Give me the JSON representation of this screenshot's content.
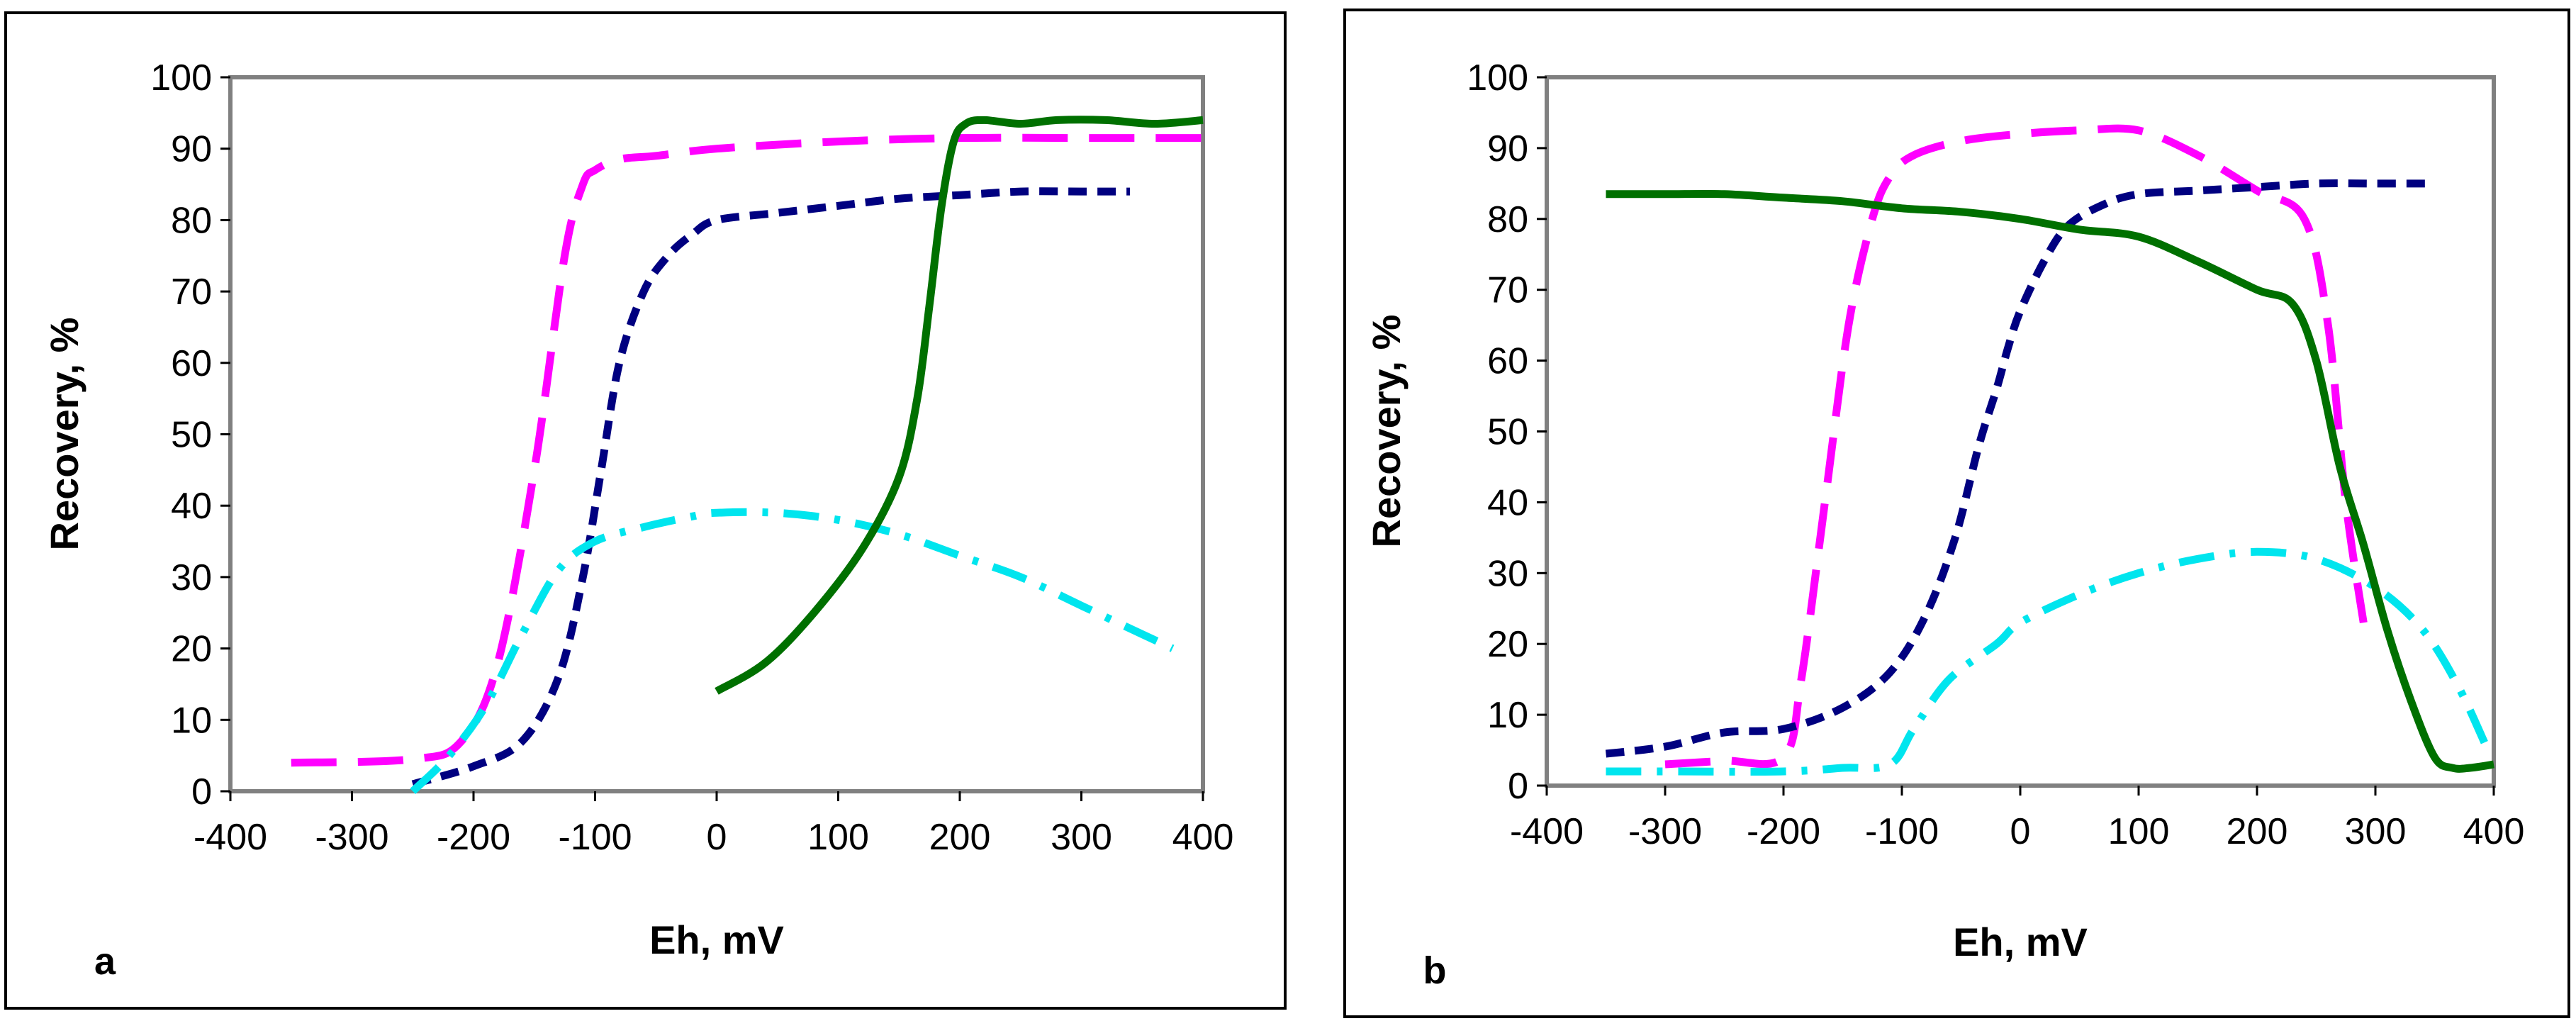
{
  "chart_data": [
    {
      "type": "line",
      "panel_label": "a",
      "xlabel": "Eh, mV",
      "ylabel": "Recovery, %",
      "xlim": [
        -400,
        400
      ],
      "ylim": [
        0,
        100
      ],
      "xticks": [
        -400,
        -300,
        -200,
        -100,
        0,
        100,
        200,
        300,
        400
      ],
      "yticks": [
        0,
        10,
        20,
        30,
        40,
        50,
        60,
        70,
        80,
        90,
        100
      ],
      "xtick_labels": [
        "-400",
        "-300",
        "-200",
        "-100",
        "0",
        "100",
        "200",
        "300",
        "400"
      ],
      "ytick_labels": [
        "0",
        "10",
        "20",
        "30",
        "40",
        "50",
        "60",
        "70",
        "80",
        "90",
        "100"
      ],
      "series": [
        {
          "name": "magenta-long-dash",
          "color": "#ff00ff",
          "style": "long-dash",
          "x": [
            -350,
            -250,
            -210,
            -180,
            -150,
            -125,
            -110,
            -100,
            -80,
            -50,
            0,
            100,
            200,
            300,
            400
          ],
          "y": [
            4,
            4.5,
            7,
            18,
            45,
            75,
            85,
            87,
            88.5,
            89,
            90,
            91,
            91.5,
            91.5,
            91.5
          ]
        },
        {
          "name": "navy-short-dash",
          "color": "#000080",
          "style": "short-dash",
          "x": [
            -250,
            -200,
            -160,
            -130,
            -110,
            -95,
            -80,
            -60,
            -40,
            -20,
            0,
            50,
            100,
            150,
            200,
            250,
            300,
            340
          ],
          "y": [
            1,
            3.5,
            7,
            16,
            30,
            45,
            60,
            70,
            75,
            78,
            80,
            81,
            82,
            83,
            83.5,
            84,
            84,
            84
          ]
        },
        {
          "name": "cyan-dash-dot",
          "color": "#00e5ee",
          "style": "dash-dot",
          "x": [
            -250,
            -220,
            -190,
            -160,
            -130,
            -100,
            -60,
            -20,
            0,
            50,
            100,
            150,
            200,
            250,
            300,
            350,
            375
          ],
          "y": [
            0,
            5,
            12,
            22,
            31,
            35,
            37,
            38.5,
            39,
            39,
            38,
            36,
            33,
            30,
            26,
            22,
            20
          ]
        },
        {
          "name": "green-solid",
          "color": "#007000",
          "style": "solid",
          "x": [
            0,
            40,
            80,
            120,
            150,
            165,
            175,
            185,
            195,
            205,
            220,
            250,
            280,
            320,
            360,
            400
          ],
          "y": [
            14,
            18,
            25,
            34,
            44,
            55,
            68,
            82,
            91,
            93.5,
            94,
            93.5,
            94,
            94,
            93.5,
            94
          ]
        }
      ]
    },
    {
      "type": "line",
      "panel_label": "b",
      "xlabel": "Eh, mV",
      "ylabel": "Recovery, %",
      "xlim": [
        -400,
        400
      ],
      "ylim": [
        0,
        100
      ],
      "xticks": [
        -400,
        -300,
        -200,
        -100,
        0,
        100,
        200,
        300,
        400
      ],
      "yticks": [
        0,
        10,
        20,
        30,
        40,
        50,
        60,
        70,
        80,
        90,
        100
      ],
      "xtick_labels": [
        "-400",
        "-300",
        "-200",
        "-100",
        "0",
        "100",
        "200",
        "300",
        "400"
      ],
      "ytick_labels": [
        "0",
        "10",
        "20",
        "30",
        "40",
        "50",
        "60",
        "70",
        "80",
        "90",
        "100"
      ],
      "series": [
        {
          "name": "magenta-long-dash",
          "color": "#ff00ff",
          "style": "long-dash",
          "x": [
            -300,
            -250,
            -200,
            -185,
            -165,
            -145,
            -125,
            -110,
            -90,
            -50,
            0,
            50,
            100,
            150,
            200,
            240,
            260,
            275,
            290
          ],
          "y": [
            3,
            3.5,
            4,
            15,
            40,
            65,
            80,
            86,
            89,
            91,
            92,
            92.5,
            92.5,
            89,
            84,
            80,
            65,
            40,
            23
          ]
        },
        {
          "name": "navy-short-dash",
          "color": "#000080",
          "style": "short-dash",
          "x": [
            -350,
            -300,
            -250,
            -200,
            -150,
            -110,
            -80,
            -55,
            -35,
            -20,
            -10,
            0,
            20,
            40,
            70,
            100,
            150,
            200,
            250,
            300,
            350
          ],
          "y": [
            4.5,
            5.5,
            7.5,
            8,
            11,
            16,
            24,
            35,
            48,
            56,
            62,
            67,
            74,
            79,
            82,
            83.5,
            84,
            84.5,
            85,
            85,
            85
          ]
        },
        {
          "name": "cyan-dash-dot",
          "color": "#00e5ee",
          "style": "dash-dot",
          "x": [
            -350,
            -300,
            -200,
            -150,
            -110,
            -90,
            -60,
            -20,
            0,
            50,
            100,
            150,
            200,
            250,
            300,
            340,
            370,
            395
          ],
          "y": [
            2,
            2,
            2,
            2.5,
            3,
            8,
            15,
            20,
            23,
            27,
            30,
            32,
            33,
            32,
            28,
            22,
            14,
            5
          ]
        },
        {
          "name": "green-solid",
          "color": "#007000",
          "style": "solid",
          "x": [
            -350,
            -300,
            -250,
            -200,
            -150,
            -100,
            -50,
            0,
            50,
            100,
            150,
            200,
            230,
            250,
            270,
            290,
            310,
            330,
            350,
            365,
            380,
            400
          ],
          "y": [
            83.5,
            83.5,
            83.5,
            83,
            82.5,
            81.5,
            81,
            80,
            78.5,
            77.5,
            74,
            70,
            68,
            60,
            45,
            34,
            22,
            12,
            4,
            2.5,
            2.5,
            3
          ]
        }
      ]
    }
  ]
}
